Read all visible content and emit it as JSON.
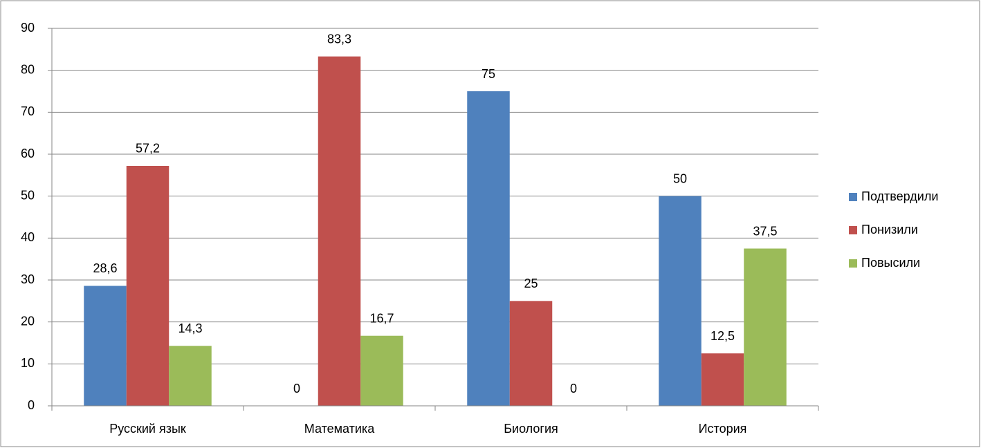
{
  "chart_data": {
    "type": "bar",
    "categories": [
      "Русский язык",
      "Математика",
      "Биология",
      "История"
    ],
    "series": [
      {
        "name": "Подтвердили",
        "color": "#4f81bd",
        "values": [
          28.6,
          0,
          75,
          50
        ],
        "value_labels": [
          "28,6",
          "0",
          "75",
          "50"
        ]
      },
      {
        "name": "Понизили",
        "color": "#c0504d",
        "values": [
          57.2,
          83.3,
          25,
          12.5
        ],
        "value_labels": [
          "57,2",
          "83,3",
          "25",
          "12,5"
        ]
      },
      {
        "name": "Повысили",
        "color": "#9bbb59",
        "values": [
          14.3,
          16.7,
          0,
          37.5
        ],
        "value_labels": [
          "14,3",
          "16,7",
          "0",
          "37,5"
        ]
      }
    ],
    "ylim": [
      0,
      90
    ],
    "yticks": [
      0,
      10,
      20,
      30,
      40,
      50,
      60,
      70,
      80,
      90
    ],
    "grid": true,
    "legend": "right"
  }
}
